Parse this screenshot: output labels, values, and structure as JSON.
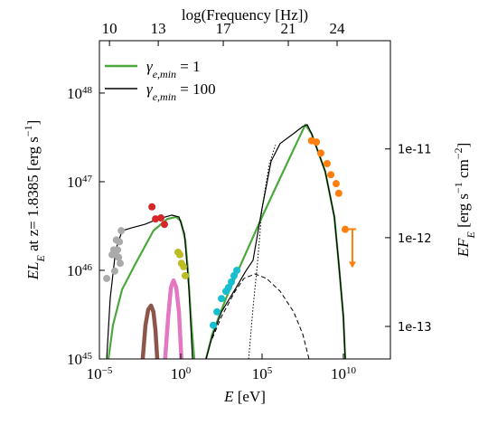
{
  "chart_data": {
    "type": "line",
    "xscale": "log",
    "yscale": "log",
    "y2scale": "log",
    "xlim": [
      1e-05,
      7800000000000.0
    ],
    "ylim": [
      1e+45,
      3.9e+48
    ],
    "y2lim": [
      4.3e-14,
      1.66e-10
    ],
    "x2lim": [
      9.38,
      27.28
    ],
    "xticks": [
      {
        "value": 1e-05,
        "label": "10",
        "exp": "−5"
      },
      {
        "value": 1,
        "label": "10",
        "exp": "0"
      },
      {
        "value": 100000.0,
        "label": "10",
        "exp": "5"
      },
      {
        "value": 10000000000.0,
        "label": "10",
        "exp": "10"
      }
    ],
    "yticks": [
      {
        "value": 1e+45,
        "label": "10",
        "exp": "45"
      },
      {
        "value": 1e+46,
        "label": "10",
        "exp": "46"
      },
      {
        "value": 1e+47,
        "label": "10",
        "exp": "47"
      },
      {
        "value": 1e+48,
        "label": "10",
        "exp": "48"
      }
    ],
    "y2ticks": [
      {
        "value": 1e-13,
        "label": "1e-13"
      },
      {
        "value": 1e-12,
        "label": "1e-12"
      },
      {
        "value": 1e-11,
        "label": "1e-11"
      }
    ],
    "x2ticks": [
      10,
      13,
      17,
      21,
      24
    ],
    "xlabel": [
      {
        "text": "E",
        "italic": true
      },
      {
        "text": " [eV]"
      }
    ],
    "x2label": [
      {
        "text": "log(Frequency [Hz])"
      }
    ],
    "ylabel": [
      {
        "text": "EL",
        "italic": true
      },
      {
        "text": "E",
        "italic": true,
        "sub": true
      },
      {
        "text": " at z= 1.8385 [erg s"
      },
      {
        "text": "−1",
        "sup": true
      },
      {
        "text": "]"
      }
    ],
    "y2label": [
      {
        "text": "EF",
        "italic": true
      },
      {
        "text": "E",
        "italic": true,
        "sub": true
      },
      {
        "text": " [erg s"
      },
      {
        "text": "−1",
        "sup": true
      },
      {
        "text": " cm"
      },
      {
        "text": "−2",
        "sup": true
      },
      {
        "text": "]"
      }
    ],
    "legend": "upper left",
    "series": [
      {
        "kind": "line",
        "color": "#8c564b",
        "width": 4.5,
        "dash": "solid",
        "x": [
          0.0046,
          0.0068,
          0.01,
          0.015,
          0.021,
          0.028,
          0.036
        ],
        "values": [
          1e+45,
          2.4e+45,
          3.6e+45,
          4e+45,
          3.4e+45,
          2.1e+45,
          1e+45
        ]
      },
      {
        "kind": "line",
        "color": "#e377c2",
        "width": 4.5,
        "dash": "solid",
        "x": [
          0.11,
          0.17,
          0.25,
          0.36,
          0.53,
          0.78,
          1.1
        ],
        "values": [
          1e+45,
          3e+45,
          6.4e+45,
          7.7e+45,
          6.4e+45,
          3.4e+45,
          1e+45
        ]
      },
      {
        "kind": "line",
        "color": "#000000",
        "width": 1,
        "dash": "dashed",
        "x": [
          87,
          320,
          2200.0,
          7700.0,
          36000.0,
          190000.0,
          1300000.0,
          8800000.0,
          32000000.0,
          77000000.0
        ],
        "values": [
          1.7e+45,
          3e+45,
          5.8e+45,
          8.1e+45,
          9.1e+45,
          8.1e+45,
          5.8e+45,
          3.4e+45,
          1.9e+45,
          1e+45
        ]
      },
      {
        "kind": "line",
        "color": "#000000",
        "width": 1,
        "dash": "dotted",
        "x": [
          15000.0,
          28000.0,
          52000.0,
          100000.0,
          280000.0,
          680000.0
        ],
        "values": [
          1e+45,
          3.8e+45,
          1.2e+46,
          5e+46,
          1.6e+47,
          2.6e+47
        ]
      },
      {
        "kind": "line",
        "color": "#4aa83c",
        "width": 2.2,
        "dash": "solid",
        "name": [
          {
            "text": "γ",
            "italic": true
          },
          {
            "text": "e,min",
            "italic": true,
            "sub": true
          },
          {
            "text": " = 1"
          }
        ],
        "x": [
          3.6e-05,
          6.8e-05,
          0.00025,
          0.0017,
          0.021,
          0.15,
          0.53,
          1,
          1.9,
          2.8,
          4.6,
          6.8,
          null,
          36,
          87,
          600,
          7700.0,
          100000.0,
          1300000.0,
          17000000.0,
          46000000.0,
          110000000.0,
          770000000.0,
          2800000000.0,
          5200000000.0,
          10000000000.0,
          13000000000.0
        ],
        "values": [
          1e+45,
          2.4e+45,
          6.1e+45,
          1.2e+46,
          2.8e+46,
          3.8e+46,
          4e+46,
          3.6e+46,
          2.2e+46,
          9.8e+45,
          2.4e+45,
          1e+45,
          null,
          1e+45,
          1.9e+45,
          4.8e+45,
          1.4e+46,
          4e+46,
          1.1e+47,
          3e+47,
          4.4e+47,
          3.5e+47,
          1.3e+47,
          4e+46,
          1.2e+46,
          3e+45,
          1e+45
        ]
      },
      {
        "kind": "line",
        "color": "#000000",
        "width": 1.2,
        "dash": "solid",
        "name": [
          {
            "text": "γ",
            "italic": true
          },
          {
            "text": "e,min",
            "italic": true,
            "sub": true
          },
          {
            "text": " = 100"
          }
        ],
        "x": [
          2.8e-05,
          4.6e-05,
          0.0001,
          0.00025,
          0.00088,
          0.006,
          0.041,
          0.28,
          0.78,
          1.7,
          3.2,
          5.3,
          null,
          36,
          87,
          320,
          2200.0,
          10000.0,
          28000.0,
          100000.0,
          360000.0,
          1300000.0,
          8800000.0,
          32000000.0,
          60000000.0,
          110000000.0,
          770000000.0,
          2800000000.0,
          5200000000.0,
          10000000000.0,
          13000000000.0
        ],
        "values": [
          1e+45,
          4.8e+45,
          1.7e+46,
          2.8e+46,
          3e+46,
          3.3e+46,
          3.8e+46,
          4.2e+46,
          4e+46,
          2.6e+46,
          6.1e+45,
          1e+45,
          null,
          1e+45,
          1.8e+45,
          3.4e+45,
          6.1e+45,
          9.8e+45,
          1.3e+46,
          5e+46,
          1.7e+47,
          2.7e+47,
          3.5e+47,
          4.2e+47,
          4.4e+47,
          3.5e+47,
          1.3e+47,
          4e+46,
          1.2e+46,
          3e+45,
          1e+45
        ]
      },
      {
        "kind": "scatter",
        "color": "#aaaaaa",
        "x": [
          2.8e-05,
          6e-05,
          7.7e-05,
          8.8e-05,
          0.0001,
          0.00011,
          0.00013,
          0.00015,
          0.00017,
          0.00019,
          0.00022
        ],
        "values": [
          8.1e+45,
          1.5e+46,
          1.7e+46,
          9.8e+45,
          1.5e+46,
          2.2e+46,
          1.7e+46,
          1.4e+46,
          2.1e+46,
          1.2e+46,
          2.8e+46
        ]
      },
      {
        "kind": "scatter",
        "color": "#d62728",
        "x": [
          0.017,
          0.028,
          0.06,
          0.1
        ],
        "values": [
          5.2e+46,
          3.8e+46,
          3.9e+46,
          3.3e+46
        ]
      },
      {
        "kind": "scatter",
        "color": "#bcbd22",
        "x": [
          0.68,
          0.88,
          1.1,
          1.5,
          1.9
        ],
        "values": [
          1.6e+46,
          1.5e+46,
          1.2e+46,
          1.1e+46,
          8.7e+45
        ]
      },
      {
        "kind": "scatter",
        "color": "#17becf",
        "x": [
          100,
          170,
          320,
          600,
          870,
          1300.0,
          1900.0,
          2800.0
        ],
        "values": [
          2.4e+45,
          3.4e+45,
          4.8e+45,
          5.8e+45,
          6.4e+45,
          7.4e+45,
          8.7e+45,
          1e+46
        ]
      },
      {
        "kind": "scatter",
        "color": "#ff7f0e",
        "x": [
          110000000.0,
          220000000.0,
          410000000.0,
          1000000000.0,
          1700000000.0,
          3600000000.0,
          5200000000.0,
          13000000000.0,
          36000000000.0
        ],
        "values": [
          2.9e+47,
          2.8e+47,
          2.1e+47,
          1.6e+47,
          1.2e+47,
          9.5e+46,
          7.4e+46,
          2.9e+46,
          2.2e+46
        ],
        "upper_limit": [
          false,
          false,
          false,
          false,
          false,
          false,
          false,
          false,
          true
        ]
      }
    ]
  }
}
